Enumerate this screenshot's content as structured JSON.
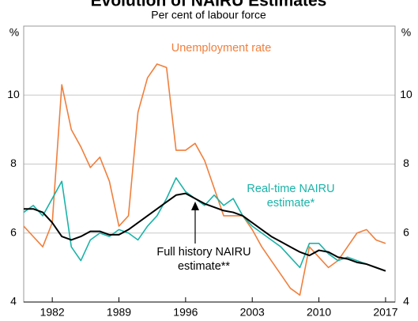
{
  "chart_data": {
    "type": "line",
    "title": "Evolution of NAIRU Estimates",
    "subtitle": "Per cent of labour force",
    "y_unit": "%",
    "x": [
      1979,
      1980,
      1981,
      1982,
      1983,
      1984,
      1985,
      1986,
      1987,
      1988,
      1989,
      1990,
      1991,
      1992,
      1993,
      1994,
      1995,
      1996,
      1997,
      1998,
      1999,
      2000,
      2001,
      2002,
      2003,
      2004,
      2005,
      2006,
      2007,
      2008,
      2009,
      2010,
      2011,
      2012,
      2013,
      2014,
      2015,
      2016,
      2017
    ],
    "series": [
      {
        "name": "Unemployment rate",
        "color": "#f07f3c",
        "values": [
          6.2,
          5.9,
          5.6,
          6.3,
          10.3,
          9.0,
          8.5,
          7.9,
          8.2,
          7.5,
          6.2,
          6.5,
          9.5,
          10.5,
          10.9,
          10.8,
          8.4,
          8.4,
          8.6,
          8.1,
          7.3,
          6.5,
          6.5,
          6.5,
          6.1,
          5.6,
          5.2,
          4.8,
          4.4,
          4.2,
          5.6,
          5.3,
          5.0,
          5.2,
          5.6,
          6.0,
          6.1,
          5.8,
          5.7
        ]
      },
      {
        "name": "Real-time NAIRU estimate*",
        "color": "#1ab3a8",
        "values": [
          6.6,
          6.8,
          6.5,
          7.0,
          7.5,
          5.6,
          5.2,
          5.8,
          6.0,
          5.9,
          6.1,
          6.0,
          5.8,
          6.2,
          6.5,
          7.0,
          7.6,
          7.2,
          7.0,
          6.8,
          7.1,
          6.8,
          7.0,
          6.5,
          6.2,
          6.0,
          5.8,
          5.6,
          5.3,
          5.0,
          5.7,
          5.7,
          5.4,
          5.2,
          5.3,
          5.2,
          5.1,
          5.0,
          4.9
        ]
      },
      {
        "name": "Full history NAIRU estimate**",
        "color": "#000000",
        "values": [
          6.7,
          6.7,
          6.6,
          6.3,
          5.9,
          5.8,
          5.9,
          6.05,
          6.05,
          5.95,
          5.95,
          6.1,
          6.3,
          6.5,
          6.7,
          6.9,
          7.1,
          7.15,
          7.0,
          6.85,
          6.75,
          6.65,
          6.6,
          6.5,
          6.3,
          6.1,
          5.9,
          5.75,
          5.6,
          5.45,
          5.35,
          5.5,
          5.45,
          5.3,
          5.25,
          5.15,
          5.1,
          5.0,
          4.9
        ]
      }
    ],
    "xlim": [
      1979,
      2018
    ],
    "xticks": [
      1982,
      1989,
      1996,
      2003,
      2010,
      2017
    ],
    "ylim": [
      4,
      12
    ],
    "yticks": [
      4,
      6,
      8,
      10
    ],
    "grid": true
  }
}
